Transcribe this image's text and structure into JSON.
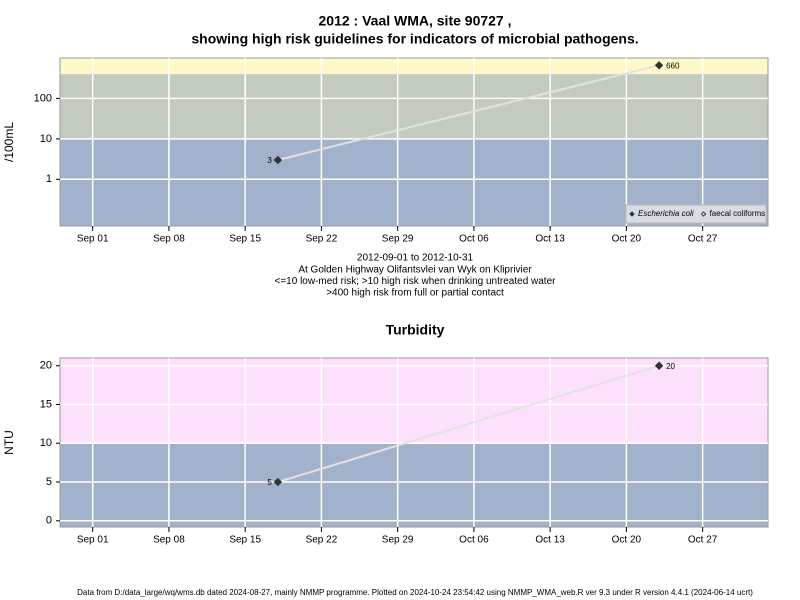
{
  "chart_data": [
    {
      "type": "line",
      "title": "2012 : Vaal WMA, site 90727 ,",
      "subtitle": "showing high risk guidelines for indicators of microbial pathogens.",
      "ylabel": "/100mL",
      "log_scale": true,
      "ylim": [
        0.07,
        1000
      ],
      "yticks": [
        1,
        10,
        100
      ],
      "xlim": [
        "2012-08-29",
        "2012-11-02"
      ],
      "xticks": [
        {
          "value": "2012-09-01",
          "label": "Sep 01"
        },
        {
          "value": "2012-09-08",
          "label": "Sep 08"
        },
        {
          "value": "2012-09-15",
          "label": "Sep 15"
        },
        {
          "value": "2012-09-22",
          "label": "Sep 22"
        },
        {
          "value": "2012-09-29",
          "label": "Sep 29"
        },
        {
          "value": "2012-10-06",
          "label": "Oct 06"
        },
        {
          "value": "2012-10-13",
          "label": "Oct 13"
        },
        {
          "value": "2012-10-20",
          "label": "Oct 20"
        },
        {
          "value": "2012-10-27",
          "label": "Oct 27"
        }
      ],
      "grid": true,
      "thresholds": [
        10,
        400
      ],
      "band_colors": [
        "#a2b2ca",
        "#c3cbc0",
        "#fff9c9"
      ],
      "series": [
        {
          "name": "Escherichia coli",
          "color": "#333333",
          "line_color": "#e2e2e2",
          "x": [
            "2012-09-18",
            "2012-10-23"
          ],
          "values": [
            3,
            660
          ]
        },
        {
          "name": "faecal coliforms",
          "color": "#333333",
          "line_color": "#e2e2e2",
          "x": [],
          "values": []
        }
      ],
      "legend": "lower right",
      "notes": [
        "2012-09-01 to 2012-10-31",
        "At Golden Highway Olifantsvlei van Wyk on Kliprivier",
        "<=10 low-med risk; >10 high risk when drinking untreated water",
        ">400 high risk from full or partial contact"
      ]
    },
    {
      "type": "line",
      "title": "Turbidity",
      "ylabel": "NTU",
      "log_scale": false,
      "ylim": [
        -0.8,
        21
      ],
      "yticks": [
        0,
        5,
        10,
        15,
        20
      ],
      "xlim": [
        "2012-08-29",
        "2012-11-02"
      ],
      "xticks": [
        {
          "value": "2012-09-01",
          "label": "Sep 01"
        },
        {
          "value": "2012-09-08",
          "label": "Sep 08"
        },
        {
          "value": "2012-09-15",
          "label": "Sep 15"
        },
        {
          "value": "2012-09-22",
          "label": "Sep 22"
        },
        {
          "value": "2012-09-29",
          "label": "Sep 29"
        },
        {
          "value": "2012-10-06",
          "label": "Oct 06"
        },
        {
          "value": "2012-10-13",
          "label": "Oct 13"
        },
        {
          "value": "2012-10-20",
          "label": "Oct 20"
        },
        {
          "value": "2012-10-27",
          "label": "Oct 27"
        }
      ],
      "grid": true,
      "thresholds": [
        10
      ],
      "band_colors": [
        "#a2b2ca",
        "#fde0fc"
      ],
      "series": [
        {
          "color": "#333333",
          "line_color": "#e2e2e2",
          "x": [
            "2012-09-18",
            "2012-10-23"
          ],
          "values": [
            5,
            20
          ]
        }
      ]
    }
  ],
  "footer": "Data from D:/data_large/wq/wms.db dated 2024-08-27, mainly NMMP programme. Plotted on 2024-10-24 23:54:42 using NMMP_WMA_web.R ver 9.3 under R version 4.4.1 (2024-06-14 ucrt)"
}
